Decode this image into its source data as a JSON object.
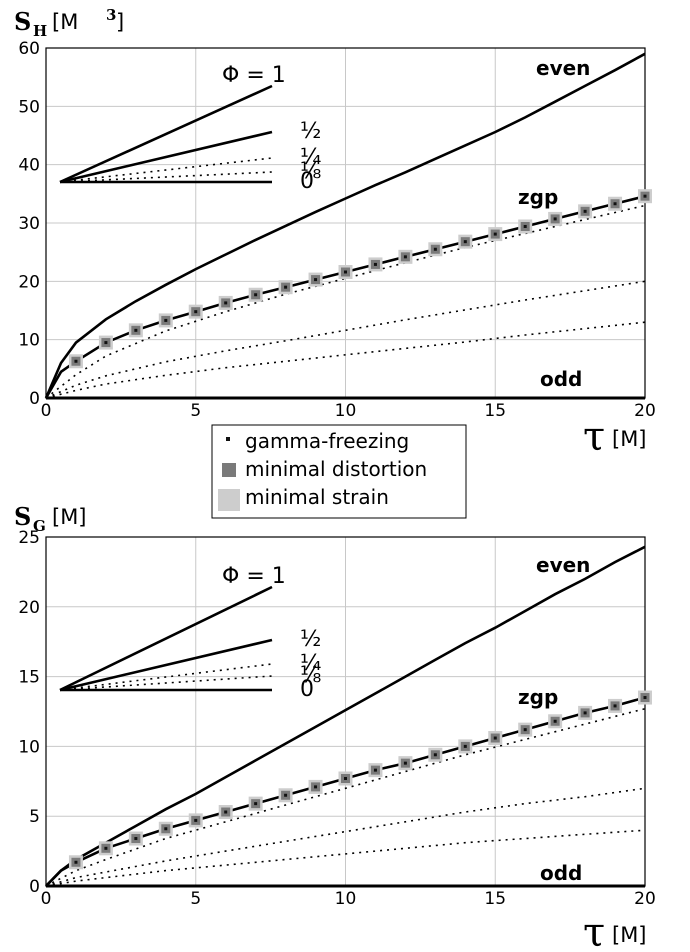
{
  "legend": {
    "items": [
      {
        "label": "gamma-freezing",
        "color": "#111111"
      },
      {
        "label": "minimal distortion",
        "color": "#7a7a7a"
      },
      {
        "label": "minimal strain",
        "color": "#cdcdcd"
      }
    ]
  },
  "phi_inset": {
    "phi_symbol": "Φ",
    "labels": [
      "= 1",
      "½",
      "¼",
      "⅛",
      "0"
    ],
    "dotted": [
      false,
      false,
      true,
      true,
      false
    ]
  },
  "colors": {
    "axes": "#000000",
    "grid": "#c8c8c8",
    "curves": "#000000",
    "marker_distortion": "#7a7a7a",
    "marker_strain": "#cdcdcd",
    "marker_gamma": "#111111"
  },
  "chart_data": [
    {
      "type": "line",
      "ylabel_main": "S",
      "ylabel_sub": "H",
      "ylabel_unit": "[M",
      "ylabel_unit_sup": "3",
      "ylabel_unit_close": "]",
      "xlabel_symbol": "τ",
      "xlabel_unit": "[M]",
      "xlim": [
        0,
        20
      ],
      "ylim": [
        0,
        60
      ],
      "xticks": [
        0,
        5,
        10,
        15,
        20
      ],
      "yticks": [
        0,
        10,
        20,
        30,
        40,
        50,
        60
      ],
      "grid": true,
      "curve_labels": [
        "even",
        "zgp",
        "odd"
      ],
      "series": [
        {
          "x": [
            0,
            0.5,
            1,
            2,
            3,
            4,
            5,
            6,
            7,
            8,
            9,
            10,
            11,
            12,
            13,
            14,
            15,
            16,
            17,
            18,
            19,
            20
          ],
          "values": [
            0,
            6,
            9.5,
            13.5,
            16.6,
            19.4,
            22.1,
            24.6,
            27.1,
            29.5,
            31.9,
            34.2,
            36.5,
            38.7,
            41,
            43.3,
            45.6,
            48.1,
            50.8,
            53.5,
            56.2,
            59
          ],
          "style": "solid"
        },
        {
          "x": [
            0,
            0.5,
            1,
            2,
            3,
            4,
            5,
            6,
            7,
            8,
            9,
            10,
            11,
            12,
            13,
            14,
            15,
            16,
            17,
            18,
            19,
            20
          ],
          "values": [
            0,
            4.5,
            6.3,
            9.5,
            11.6,
            13.3,
            14.8,
            16.3,
            17.7,
            19,
            20.3,
            21.6,
            22.9,
            24.2,
            25.5,
            26.8,
            28.1,
            29.4,
            30.7,
            32,
            33.3,
            34.6
          ],
          "style": "solid"
        },
        {
          "x": [
            0,
            1,
            2,
            4,
            6,
            8,
            10,
            12,
            14,
            16,
            18,
            20
          ],
          "values": [
            0,
            4,
            7.2,
            11.5,
            14.8,
            17.8,
            20.5,
            23.2,
            25.8,
            28.2,
            30.6,
            33
          ],
          "style": "dotted"
        },
        {
          "x": [
            0,
            1,
            2,
            4,
            6,
            8,
            10,
            12,
            14,
            16,
            18,
            20
          ],
          "values": [
            0,
            2.2,
            3.8,
            6.2,
            8.1,
            9.8,
            11.6,
            13.4,
            15.1,
            16.8,
            18.4,
            20
          ],
          "style": "dotted"
        },
        {
          "x": [
            0,
            1,
            2,
            4,
            6,
            8,
            10,
            12,
            14,
            16,
            18,
            20
          ],
          "values": [
            0,
            1.3,
            2.4,
            3.9,
            5.2,
            6.3,
            7.4,
            8.5,
            9.6,
            10.8,
            11.9,
            13
          ],
          "style": "dotted"
        },
        {
          "x": [
            0,
            20
          ],
          "values": [
            0,
            0
          ],
          "style": "solid"
        }
      ],
      "markers": {
        "x": [
          1,
          2,
          3,
          4,
          5,
          6,
          7,
          8,
          9,
          10,
          11,
          12,
          13,
          14,
          15,
          16,
          17,
          18,
          19,
          20
        ],
        "values": [
          6.3,
          9.5,
          11.6,
          13.3,
          14.8,
          16.3,
          17.7,
          19,
          20.3,
          21.6,
          22.9,
          24.2,
          25.5,
          26.8,
          28.1,
          29.4,
          30.7,
          32,
          33.3,
          34.6
        ]
      }
    },
    {
      "type": "line",
      "ylabel_main": "S",
      "ylabel_sub": "G",
      "ylabel_unit": "[M]",
      "ylabel_unit_sup": "",
      "ylabel_unit_close": "",
      "xlabel_symbol": "τ",
      "xlabel_unit": "[M]",
      "xlim": [
        0,
        20
      ],
      "ylim": [
        0,
        25
      ],
      "xticks": [
        0,
        5,
        10,
        15,
        20
      ],
      "yticks": [
        0,
        5,
        10,
        15,
        20,
        25
      ],
      "grid": true,
      "curve_labels": [
        "even",
        "zgp",
        "odd"
      ],
      "series": [
        {
          "x": [
            0,
            0.5,
            1,
            2,
            3,
            4,
            5,
            6,
            7,
            8,
            9,
            10,
            11,
            12,
            13,
            14,
            15,
            16,
            17,
            18,
            19,
            20
          ],
          "values": [
            0,
            1.1,
            1.9,
            3.1,
            4.3,
            5.5,
            6.6,
            7.8,
            9,
            10.2,
            11.4,
            12.6,
            13.8,
            15,
            16.2,
            17.4,
            18.5,
            19.7,
            20.9,
            22,
            23.2,
            24.3
          ],
          "style": "solid"
        },
        {
          "x": [
            0,
            0.5,
            1,
            2,
            3,
            4,
            5,
            6,
            7,
            8,
            9,
            10,
            11,
            12,
            13,
            14,
            15,
            16,
            17,
            18,
            19,
            20
          ],
          "values": [
            0,
            1.1,
            1.7,
            2.7,
            3.4,
            4.1,
            4.7,
            5.3,
            5.9,
            6.5,
            7.1,
            7.7,
            8.3,
            8.8,
            9.4,
            10,
            10.6,
            11.2,
            11.8,
            12.4,
            12.9,
            13.5
          ],
          "style": "solid"
        },
        {
          "x": [
            0,
            1,
            2,
            4,
            6,
            8,
            10,
            12,
            14,
            16,
            18,
            20
          ],
          "values": [
            0,
            1.1,
            1.9,
            3.4,
            4.6,
            5.8,
            7,
            8.2,
            9.4,
            10.5,
            11.6,
            12.7
          ],
          "style": "dotted"
        },
        {
          "x": [
            0,
            1,
            2,
            4,
            6,
            8,
            10,
            12,
            14,
            16,
            18,
            20
          ],
          "values": [
            0,
            0.6,
            1,
            1.8,
            2.5,
            3.2,
            3.9,
            4.6,
            5.3,
            5.9,
            6.4,
            7
          ],
          "style": "dotted"
        },
        {
          "x": [
            0,
            1,
            2,
            4,
            6,
            8,
            10,
            12,
            14,
            16,
            18,
            20
          ],
          "values": [
            0,
            0.35,
            0.6,
            1.1,
            1.5,
            1.9,
            2.3,
            2.7,
            3.1,
            3.4,
            3.7,
            4
          ],
          "style": "dotted"
        },
        {
          "x": [
            0,
            20
          ],
          "values": [
            0,
            0
          ],
          "style": "solid"
        }
      ],
      "markers": {
        "x": [
          1,
          2,
          3,
          4,
          5,
          6,
          7,
          8,
          9,
          10,
          11,
          12,
          13,
          14,
          15,
          16,
          17,
          18,
          19,
          20
        ],
        "values": [
          1.7,
          2.7,
          3.4,
          4.1,
          4.7,
          5.3,
          5.9,
          6.5,
          7.1,
          7.7,
          8.3,
          8.8,
          9.4,
          10,
          10.6,
          11.2,
          11.8,
          12.4,
          12.9,
          13.5
        ]
      }
    }
  ]
}
